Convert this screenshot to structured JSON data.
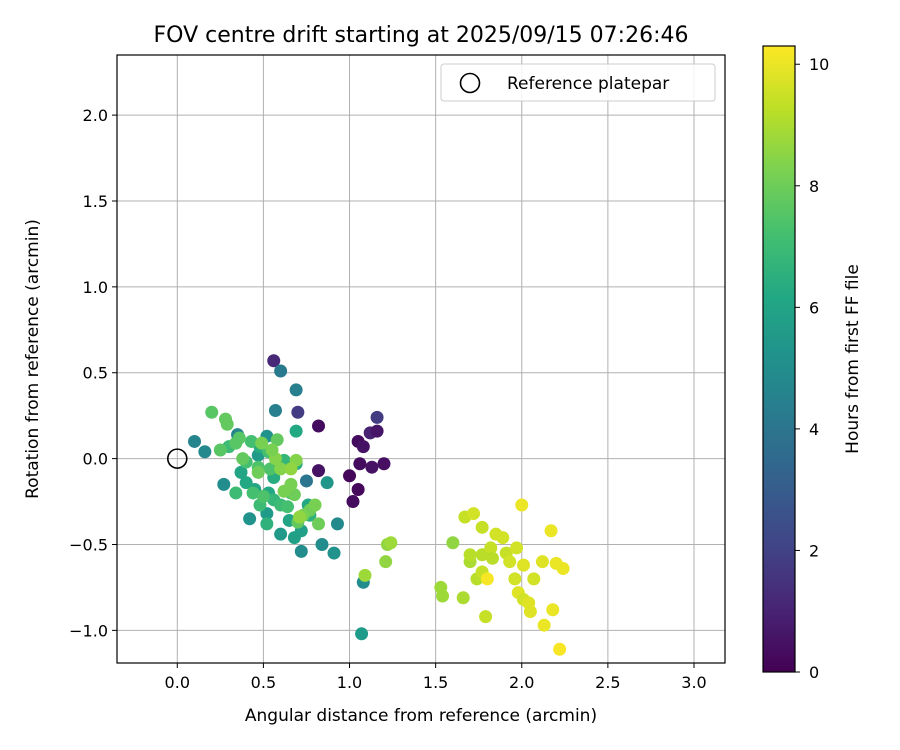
{
  "chart_data": {
    "type": "scatter",
    "title": "FOV centre drift starting at 2025/09/15 07:26:46",
    "xlabel": "Angular distance from reference (arcmin)",
    "ylabel": "Rotation from reference (arcmin)",
    "xlim": [
      -0.35,
      3.18
    ],
    "ylim": [
      -1.19,
      2.35
    ],
    "xticks": [
      "0.0",
      "0.5",
      "1.0",
      "1.5",
      "2.0",
      "2.5",
      "3.0"
    ],
    "yticks": [
      "−1.0",
      "−0.5",
      "0.0",
      "0.5",
      "1.0",
      "1.5",
      "2.0"
    ],
    "grid": true,
    "legend": {
      "placement": "top-right",
      "entries": [
        "Reference platepar"
      ]
    },
    "colorbar": {
      "label": "Hours from first FF file",
      "range": [
        0,
        10.3
      ],
      "ticks": [
        "0",
        "2",
        "4",
        "6",
        "8",
        "10"
      ],
      "colormap": "viridis"
    },
    "reference": {
      "x": 0.0,
      "y": 0.0,
      "name": "Reference platepar"
    },
    "series": [
      {
        "points": [
          [
            1.05,
            0.1,
            0.3
          ],
          [
            1.08,
            0.07,
            0.5
          ],
          [
            1.12,
            0.15,
            1.0
          ],
          [
            1.16,
            0.16,
            0.6
          ],
          [
            1.2,
            -0.03,
            0.4
          ],
          [
            1.13,
            -0.05,
            0.5
          ],
          [
            1.06,
            -0.03,
            0.3
          ],
          [
            1.0,
            -0.1,
            0.2
          ],
          [
            1.02,
            -0.25,
            0.3
          ],
          [
            1.05,
            -0.18,
            0.2
          ],
          [
            0.82,
            0.19,
            0.3
          ],
          [
            0.82,
            -0.07,
            0.5
          ],
          [
            1.16,
            0.24,
            1.8
          ],
          [
            0.7,
            0.27,
            1.8
          ],
          [
            0.56,
            0.57,
            1.2
          ],
          [
            0.6,
            0.51,
            4.2
          ],
          [
            0.69,
            0.4,
            4.4
          ],
          [
            0.57,
            0.28,
            4.4
          ],
          [
            0.1,
            0.1,
            4.6
          ],
          [
            0.16,
            0.04,
            4.8
          ],
          [
            0.35,
            0.14,
            4.6
          ],
          [
            0.27,
            -0.15,
            5.0
          ],
          [
            0.42,
            -0.35,
            5.2
          ],
          [
            0.75,
            -0.13,
            4.0
          ],
          [
            0.93,
            -0.38,
            4.8
          ],
          [
            0.84,
            -0.5,
            5.0
          ],
          [
            0.91,
            -0.55,
            5.2
          ],
          [
            0.72,
            -0.54,
            5.0
          ],
          [
            1.08,
            -0.72,
            5.0
          ],
          [
            1.07,
            -1.02,
            5.6
          ],
          [
            0.6,
            -0.44,
            5.5
          ],
          [
            0.68,
            -0.46,
            5.8
          ],
          [
            0.87,
            -0.14,
            5.4
          ],
          [
            0.72,
            -0.42,
            5.8
          ],
          [
            0.52,
            -0.32,
            5.6
          ],
          [
            0.65,
            -0.36,
            6.0
          ],
          [
            0.52,
            0.13,
            5.2
          ],
          [
            0.47,
            0.02,
            5.6
          ],
          [
            0.53,
            -0.2,
            6.2
          ],
          [
            0.76,
            -0.27,
            6.2
          ],
          [
            0.48,
            0.07,
            6.4
          ],
          [
            0.45,
            -0.18,
            6.0
          ],
          [
            0.4,
            -0.14,
            6.2
          ],
          [
            0.37,
            -0.08,
            6.0
          ],
          [
            0.65,
            -0.18,
            6.4
          ],
          [
            0.58,
            -0.06,
            6.6
          ],
          [
            0.69,
            -0.03,
            6.4
          ],
          [
            0.69,
            0.16,
            6.2
          ],
          [
            0.56,
            -0.11,
            6.4
          ],
          [
            0.77,
            -0.33,
            6.6
          ],
          [
            0.62,
            -0.01,
            6.8
          ],
          [
            0.56,
            -0.24,
            6.8
          ],
          [
            0.52,
            -0.38,
            6.6
          ],
          [
            0.6,
            -0.27,
            7.0
          ],
          [
            0.66,
            -0.2,
            7.0
          ],
          [
            0.34,
            -0.2,
            7.0
          ],
          [
            0.3,
            0.07,
            7.0
          ],
          [
            0.44,
            -0.2,
            7.2
          ],
          [
            0.48,
            -0.27,
            7.0
          ],
          [
            0.64,
            -0.28,
            7.2
          ],
          [
            0.4,
            -0.02,
            7.2
          ],
          [
            0.53,
            0.04,
            7.2
          ],
          [
            0.43,
            0.1,
            7.2
          ],
          [
            0.47,
            -0.05,
            7.4
          ],
          [
            0.5,
            -0.22,
            7.4
          ],
          [
            0.54,
            -0.06,
            7.4
          ],
          [
            0.36,
            0.12,
            7.6
          ],
          [
            0.34,
            0.09,
            7.6
          ],
          [
            0.38,
            0.0,
            7.8
          ],
          [
            0.58,
            0.11,
            7.8
          ],
          [
            0.7,
            -0.37,
            7.8
          ],
          [
            0.68,
            -0.21,
            8.0
          ],
          [
            0.82,
            -0.38,
            8.0
          ],
          [
            0.77,
            -0.3,
            8.0
          ],
          [
            0.73,
            -0.33,
            8.2
          ],
          [
            0.66,
            -0.15,
            8.2
          ],
          [
            0.62,
            -0.19,
            8.2
          ],
          [
            0.8,
            -0.27,
            8.2
          ],
          [
            0.57,
            0.0,
            8.4
          ],
          [
            0.49,
            0.09,
            8.2
          ],
          [
            0.28,
            0.23,
            7.8
          ],
          [
            0.2,
            0.27,
            7.6
          ],
          [
            0.29,
            0.2,
            7.8
          ],
          [
            0.25,
            0.05,
            7.6
          ],
          [
            0.69,
            -0.01,
            8.4
          ],
          [
            0.6,
            -0.06,
            8.4
          ],
          [
            0.55,
            0.05,
            8.2
          ],
          [
            0.47,
            -0.08,
            8.0
          ],
          [
            0.71,
            -0.34,
            8.6
          ],
          [
            0.66,
            -0.06,
            8.6
          ],
          [
            1.21,
            -0.6,
            8.6
          ],
          [
            1.22,
            -0.5,
            8.6
          ],
          [
            1.24,
            -0.49,
            8.8
          ],
          [
            1.09,
            -0.68,
            8.8
          ],
          [
            1.6,
            -0.49,
            8.6
          ],
          [
            1.53,
            -0.75,
            8.8
          ],
          [
            1.54,
            -0.8,
            8.8
          ],
          [
            1.66,
            -0.81,
            9.0
          ],
          [
            1.7,
            -0.6,
            9.0
          ],
          [
            1.7,
            -0.56,
            9.2
          ],
          [
            1.77,
            -0.56,
            9.2
          ],
          [
            1.79,
            -0.92,
            9.4
          ],
          [
            1.74,
            -0.7,
            9.2
          ],
          [
            1.77,
            -0.66,
            9.4
          ],
          [
            1.82,
            -0.52,
            9.4
          ],
          [
            1.83,
            -0.58,
            9.2
          ],
          [
            1.67,
            -0.34,
            9.4
          ],
          [
            1.72,
            -0.32,
            9.6
          ],
          [
            1.77,
            -0.4,
            9.4
          ],
          [
            1.85,
            -0.44,
            9.6
          ],
          [
            1.89,
            -0.46,
            9.6
          ],
          [
            1.91,
            -0.55,
            9.4
          ],
          [
            1.93,
            -0.6,
            9.6
          ],
          [
            1.97,
            -0.52,
            9.6
          ],
          [
            1.96,
            -0.7,
            9.6
          ],
          [
            1.98,
            -0.78,
            9.8
          ],
          [
            2.01,
            -0.82,
            9.6
          ],
          [
            2.04,
            -0.84,
            9.8
          ],
          [
            2.05,
            -0.89,
            9.8
          ],
          [
            2.07,
            -0.7,
            9.6
          ],
          [
            2.01,
            -0.62,
            9.8
          ],
          [
            2.12,
            -0.6,
            9.8
          ],
          [
            2.13,
            -0.97,
            10.0
          ],
          [
            2.17,
            -0.42,
            10.0
          ],
          [
            2.18,
            -0.88,
            10.0
          ],
          [
            2.2,
            -0.61,
            10.0
          ],
          [
            2.24,
            -0.64,
            10.0
          ],
          [
            2.22,
            -1.11,
            10.2
          ],
          [
            2.0,
            -0.27,
            10.0
          ],
          [
            1.8,
            -0.7,
            10.2
          ]
        ]
      }
    ]
  }
}
